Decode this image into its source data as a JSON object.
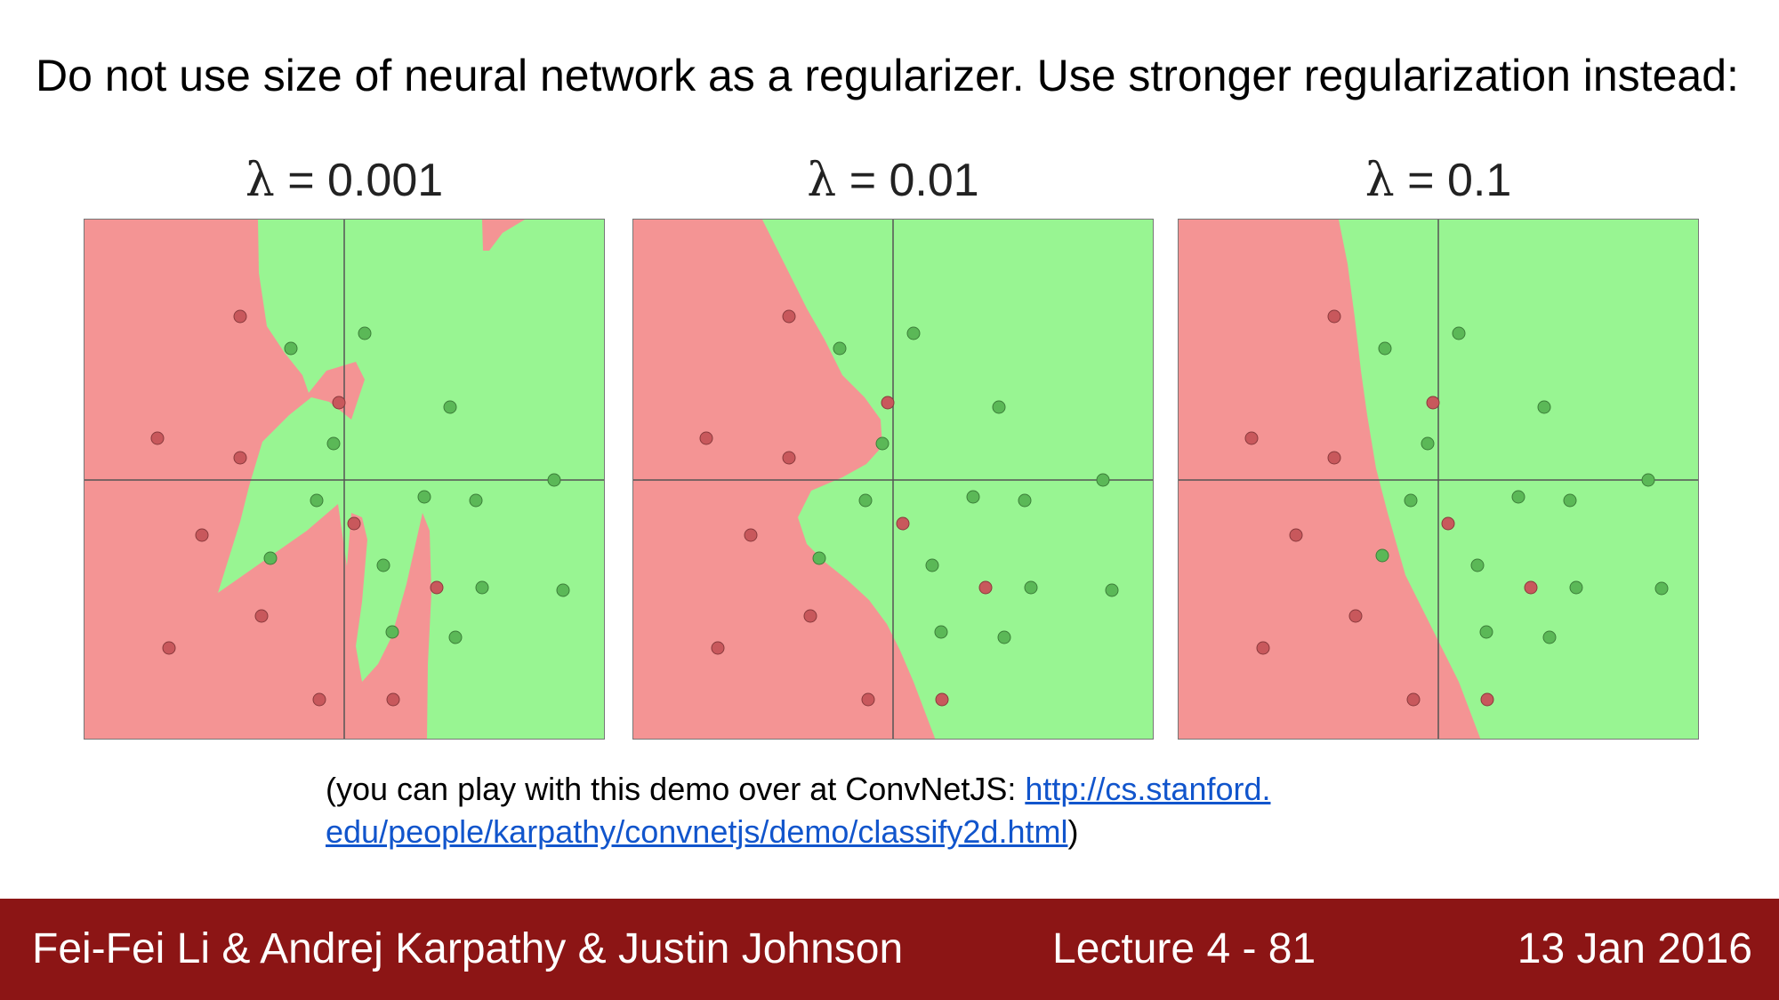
{
  "slide": {
    "headline": "Do not use size of neural network as a regularizer. Use stronger regularization instead:",
    "caption_prefix": "(you can play with this demo over at ConvNetJS: ",
    "caption_link_line1": "http://cs.stanford.",
    "caption_link_line2": "edu/people/karpathy/convnetjs/demo/classify2d.html",
    "caption_suffix": ")"
  },
  "panels": [
    {
      "lambda_symbol": "λ",
      "lambda_value": "= 0.001"
    },
    {
      "lambda_symbol": "λ",
      "lambda_value": "= 0.01"
    },
    {
      "lambda_symbol": "λ",
      "lambda_value": "= 0.1"
    }
  ],
  "colors": {
    "red_region": "#f49494",
    "green_region": "#98f592",
    "red_point": "#c8585c",
    "green_point": "#5bb857",
    "footer_bg": "#8c1515",
    "link": "#1155cc"
  },
  "footer": {
    "authors": "Fei-Fei Li & Andrej Karpathy & Justin Johnson",
    "lecture": "Lecture 4 - 81",
    "date": "13 Jan 2016"
  }
}
